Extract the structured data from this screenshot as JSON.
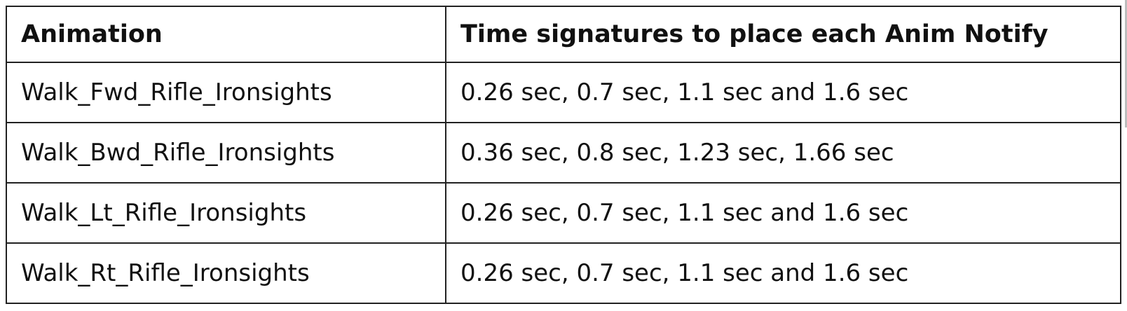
{
  "table": {
    "headers": [
      "Animation",
      "Time signatures to place each Anim Notify"
    ],
    "rows": [
      [
        "Walk_Fwd_Rifle_Ironsights",
        "0.26 sec, 0.7 sec, 1.1 sec and 1.6 sec"
      ],
      [
        "Walk_Bwd_Rifle_Ironsights",
        "0.36 sec, 0.8 sec, 1.23 sec, 1.66 sec"
      ],
      [
        "Walk_Lt_Rifle_Ironsights",
        "0.26 sec, 0.7 sec, 1.1 sec and 1.6 sec"
      ],
      [
        "Walk_Rt_Rifle_Ironsights",
        "0.26 sec, 0.7 sec, 1.1 sec and 1.6 sec"
      ]
    ]
  },
  "colors": {
    "border": "#222222",
    "text": "#111111",
    "background": "#ffffff"
  }
}
